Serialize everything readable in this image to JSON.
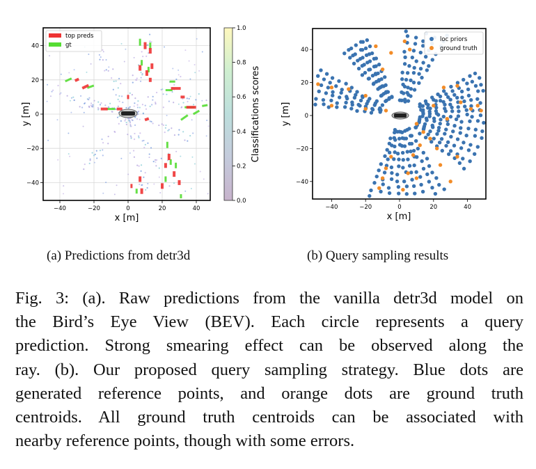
{
  "chart_data": [
    {
      "type": "scatter",
      "panel": "a",
      "xlabel": "x [m]",
      "ylabel": "y [m]",
      "xlim": [
        -50,
        50
      ],
      "ylim": [
        -50,
        50
      ],
      "xticks": [
        "−40",
        "−20",
        "0",
        "20",
        "40"
      ],
      "yticks": [
        "40",
        "20",
        "0",
        "−20",
        "−40"
      ],
      "grid": true,
      "legend_position": "top-left",
      "legend": [
        {
          "label": "top preds",
          "color": "#ee3333"
        },
        {
          "label": "gt",
          "color": "#55dd33"
        }
      ],
      "colorbar": {
        "label": "Classifications scores",
        "ticks": [
          "1.0",
          "0.8",
          "0.6",
          "0.4",
          "0.2",
          "0.0"
        ],
        "colors": [
          "#fde725",
          "#5ec962",
          "#21918c",
          "#3b528b",
          "#440154"
        ]
      }
    },
    {
      "type": "scatter",
      "panel": "b",
      "xlabel": "x [m]",
      "ylabel": "y [m]",
      "xlim": [
        -50,
        50
      ],
      "ylim": [
        -50,
        50
      ],
      "xticks": [
        "−40",
        "−20",
        "0",
        "20",
        "40"
      ],
      "yticks": [
        "40",
        "20",
        "0",
        "−20",
        "−40"
      ],
      "grid": false,
      "legend_position": "top-right",
      "series": [
        {
          "name": "loc priors",
          "color": "#3a73b0"
        },
        {
          "name": "ground truth",
          "color": "#f28c28"
        }
      ]
    }
  ],
  "subcaptions": {
    "a": "(a) Predictions from detr3d",
    "b": "(b) Query sampling results"
  },
  "caption": {
    "lines": [
      "Fig. 3: (a). Raw predictions from the vanilla detr3d model on",
      "the Bird’s Eye View (BEV). Each circle represents a query",
      "prediction. Strong smearing effect can be observed along the",
      "ray. (b). Our proposed query sampling strategy. Blue dots are",
      "generated reference points, and orange dots are ground truth",
      "centroids. All ground truth centroids can be associated with",
      "nearby reference points, though with some errors."
    ]
  }
}
